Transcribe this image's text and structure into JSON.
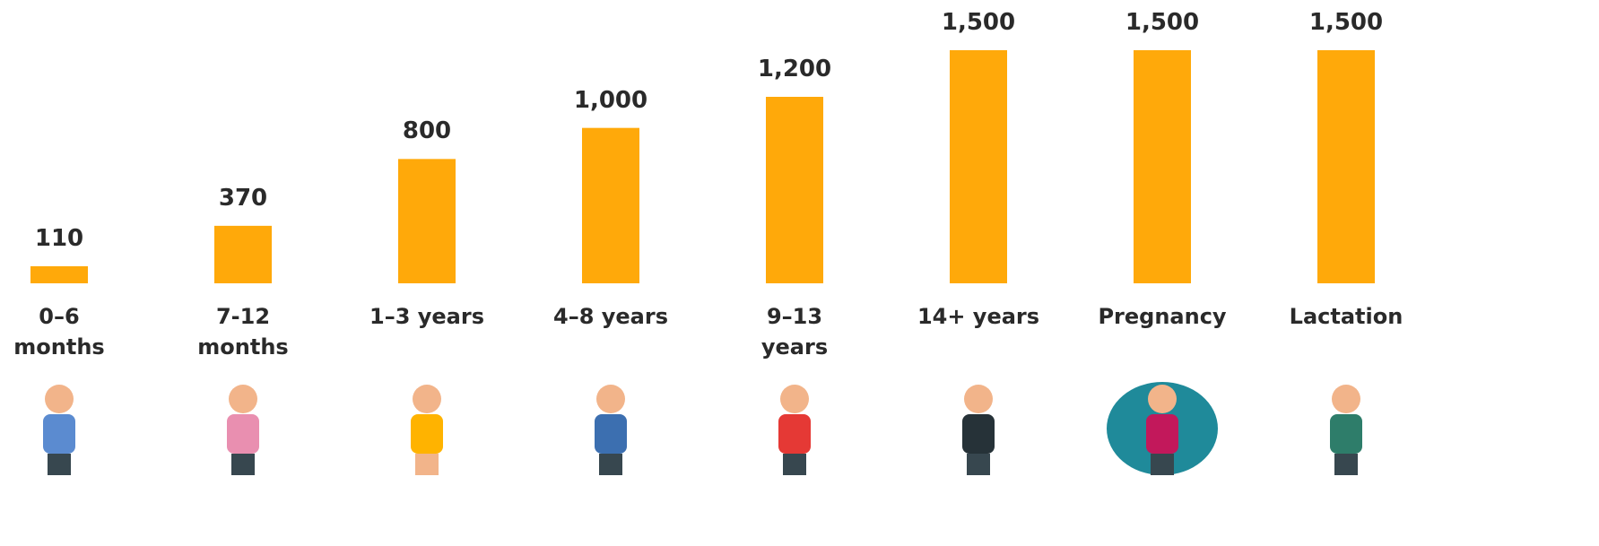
{
  "chart_data": {
    "type": "bar",
    "categories": [
      "0–6\nmonths",
      "7-12\nmonths",
      "1–3 years",
      "4–8 years",
      "9–13\nyears",
      "14+ years",
      "Pregnancy",
      "Lactation"
    ],
    "values": [
      110,
      370,
      800,
      1000,
      1200,
      1500,
      1500,
      1500
    ],
    "value_labels": [
      "110",
      "370",
      "800",
      "1,000",
      "1,200",
      "1,500",
      "1,500",
      "1,500"
    ],
    "color": "#ffa90a"
  }
}
